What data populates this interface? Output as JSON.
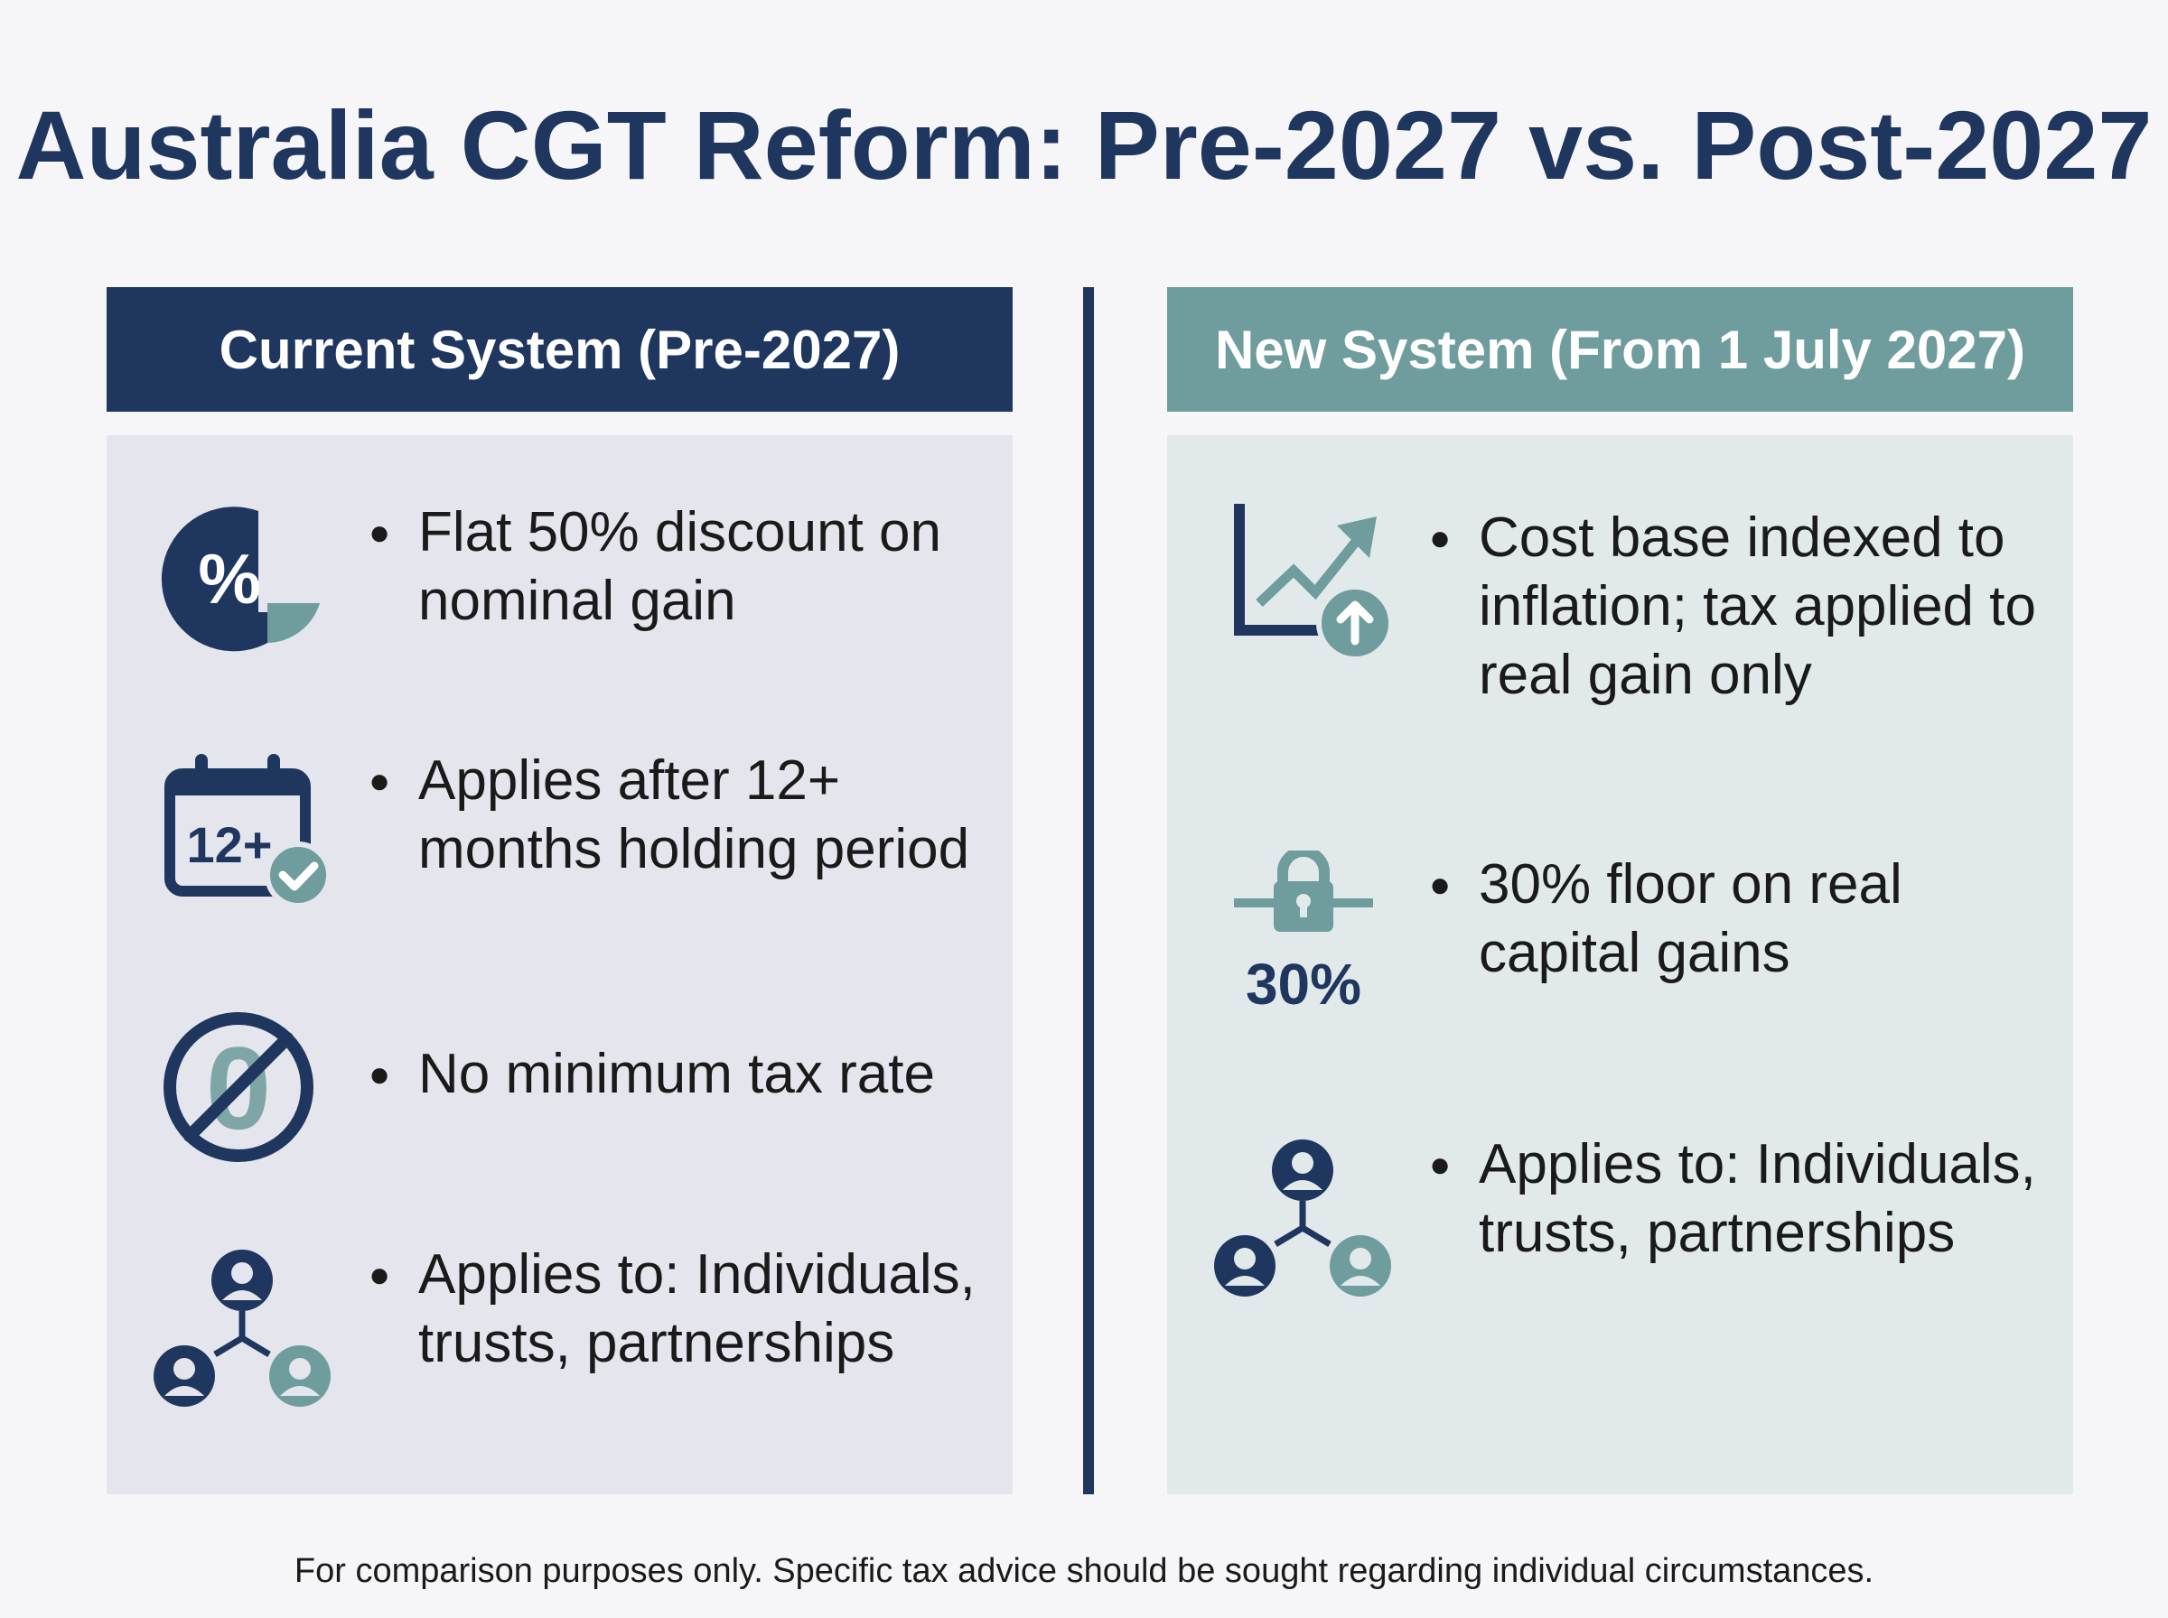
{
  "page": {
    "title": "Australia CGT Reform: Pre-2027 vs. Post-2027",
    "footnote": "For comparison purposes only. Specific tax advice should be sought regarding individual circumstances."
  },
  "colors": {
    "navy": "#1f365f",
    "teal": "#6f9c9d",
    "left_panel_bg": "#e4e5ed",
    "right_panel_bg": "#e2e9ea"
  },
  "left_column": {
    "header": "Current System (Pre-2027)",
    "items": [
      {
        "icon": "percent-pie-icon",
        "text": "Flat 50% discount on nominal gain"
      },
      {
        "icon": "calendar-check-icon",
        "icon_label": "12+",
        "text": "Applies after 12+ months holding period"
      },
      {
        "icon": "no-zero-icon",
        "icon_label": "0",
        "text": "No minimum tax rate"
      },
      {
        "icon": "people-network-icon",
        "text": "Applies to: Individuals, trusts, partnerships"
      }
    ]
  },
  "right_column": {
    "header": "New System (From 1 July 2027)",
    "items": [
      {
        "icon": "growth-chart-icon",
        "text": "Cost base indexed to inflation; tax applied to real gain only"
      },
      {
        "icon": "padlock-floor-icon",
        "icon_label": "30%",
        "text": "30% floor on real capital gains"
      },
      {
        "icon": "people-network-icon",
        "text": "Applies to: Individuals, trusts, partnerships"
      }
    ]
  }
}
